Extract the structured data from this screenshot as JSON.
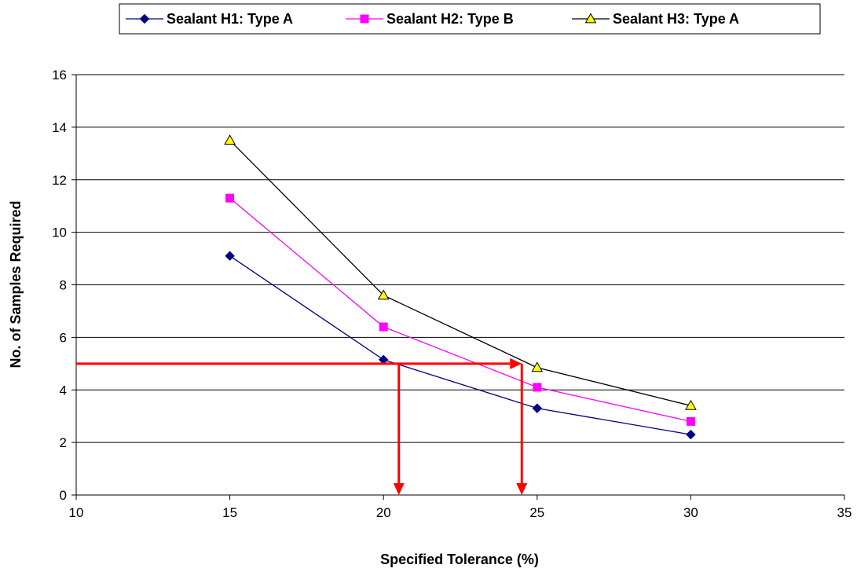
{
  "chart_data": {
    "type": "line",
    "title": "",
    "xlabel": "Specified Tolerance (%)",
    "ylabel": "No. of Samples Required",
    "xlim": [
      10,
      35
    ],
    "ylim": [
      0,
      16
    ],
    "xticks": [
      "10",
      "15",
      "20",
      "25",
      "30",
      "35"
    ],
    "yticks": [
      "0",
      "2",
      "4",
      "6",
      "8",
      "10",
      "12",
      "14",
      "16"
    ],
    "grid": "horizontal",
    "legend": "top",
    "series": [
      {
        "name": "Sealant H1: Type A",
        "color": "#000080",
        "marker": "diamond",
        "x": [
          15,
          20,
          25,
          30
        ],
        "y": [
          9.1,
          5.15,
          3.3,
          2.3
        ]
      },
      {
        "name": "Sealant H2: Type B",
        "color": "#FF00FF",
        "marker": "square",
        "x": [
          15,
          20,
          25,
          30
        ],
        "y": [
          11.3,
          6.4,
          4.1,
          2.8
        ]
      },
      {
        "name": "Sealant H3: Type A",
        "color": "#000000",
        "marker": "triangle",
        "marker_fill": "#FFFF00",
        "x": [
          15,
          20,
          25,
          30
        ],
        "y": [
          13.5,
          7.6,
          4.85,
          3.4
        ]
      }
    ],
    "annotations": [
      {
        "type": "arrow",
        "color": "#FF0000",
        "from": [
          10,
          5
        ],
        "to": [
          24.5,
          5
        ]
      },
      {
        "type": "arrow",
        "color": "#FF0000",
        "from": [
          20.5,
          5
        ],
        "to": [
          20.5,
          0
        ]
      },
      {
        "type": "arrow",
        "color": "#FF0000",
        "from": [
          24.5,
          5
        ],
        "to": [
          24.5,
          0
        ]
      }
    ]
  }
}
